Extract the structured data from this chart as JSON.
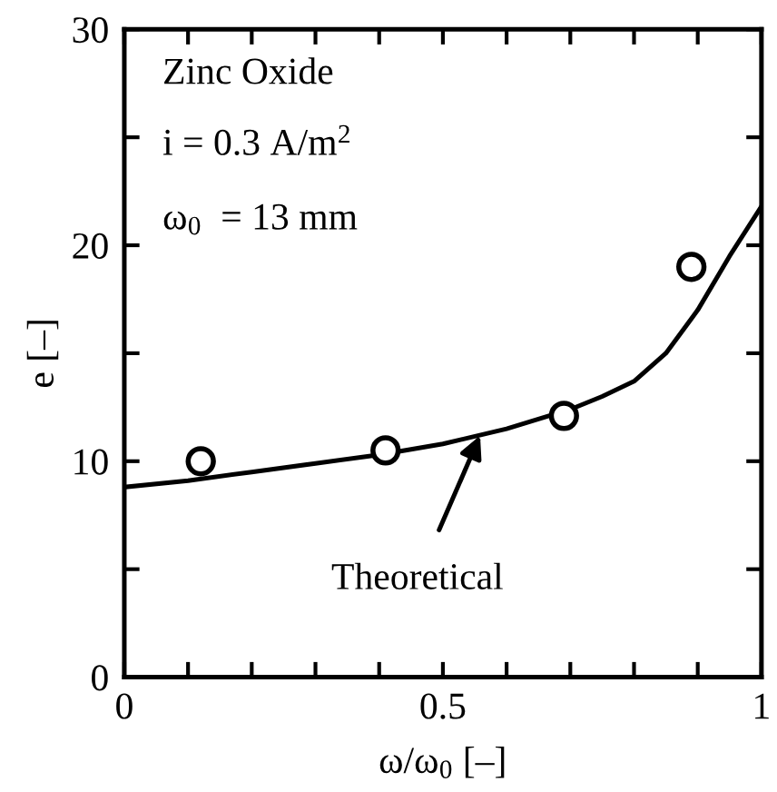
{
  "chart_data": {
    "type": "scatter",
    "xlabel": "ω/ω$_{0}$ [–]",
    "ylabel": "e [–]",
    "xlim": [
      0,
      1
    ],
    "ylim": [
      0,
      30
    ],
    "xticks": [
      0,
      {
        "value": 0.1,
        "label": null
      },
      {
        "value": 0.2,
        "label": null
      },
      {
        "value": 0.3,
        "label": null
      },
      {
        "value": 0.4,
        "label": null
      },
      0.5,
      {
        "value": 0.6,
        "label": null
      },
      {
        "value": 0.7,
        "label": null
      },
      {
        "value": 0.8,
        "label": null
      },
      {
        "value": 0.9,
        "label": null
      },
      1
    ],
    "yticks": [
      0,
      {
        "value": 5,
        "label": null
      },
      10,
      {
        "value": 15,
        "label": null
      },
      20,
      {
        "value": 25,
        "label": null
      },
      30
    ],
    "grid": false,
    "legend": false,
    "series": [
      {
        "color": "#000000",
        "marker": "circle",
        "x": [
          0.12,
          0.41,
          0.69,
          0.89
        ],
        "values": [
          10.0,
          10.5,
          12.1,
          19.0
        ]
      },
      {
        "type": "line",
        "color": "#000000",
        "marker": "none",
        "line_style": "solid",
        "x": [
          0,
          0.1,
          0.2,
          0.3,
          0.4,
          0.5,
          0.6,
          0.7,
          0.75,
          0.8,
          0.85,
          0.9,
          0.95,
          1.0
        ],
        "values": [
          8.8,
          9.1,
          9.5,
          9.9,
          10.3,
          10.8,
          11.5,
          12.4,
          13.0,
          13.7,
          15.0,
          17.0,
          19.5,
          21.8
        ]
      }
    ],
    "annotations": [
      "Zinc Oxide",
      "i = 0.3 A/m$^{2}$",
      "ω$_{0}$  = 13 mm",
      {
        "text": "Theoretical",
        "x": 0.56,
        "y": 11.3
      }
    ]
  }
}
